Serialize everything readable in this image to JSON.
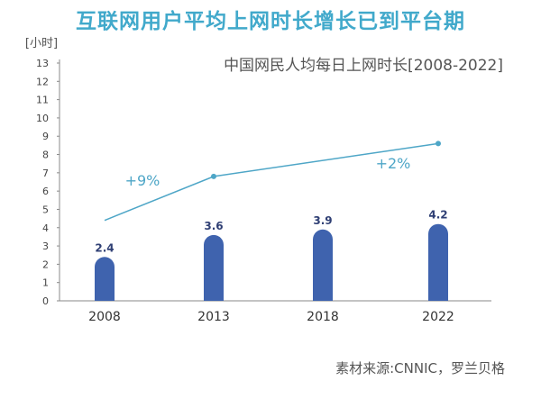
{
  "chart_data": {
    "type": "bar",
    "title": "互联网用户平均上网时长增长已到平台期",
    "subtitle": "中国网民人均每日上网时长[2008-2022]",
    "ylabel": "[小时]",
    "ylim": [
      0,
      13
    ],
    "yticks": [
      0,
      1,
      2,
      3,
      4,
      5,
      6,
      7,
      8,
      9,
      10,
      11,
      12,
      13
    ],
    "categories": [
      "2008",
      "2013",
      "2018",
      "2022"
    ],
    "series": [
      {
        "type": "bar",
        "values": [
          2.4,
          3.6,
          3.9,
          4.2
        ]
      },
      {
        "type": "line",
        "values": [
          4.4,
          6.8,
          null,
          8.6
        ]
      }
    ],
    "annotations": [
      "+9%",
      "+2%"
    ],
    "grid": false,
    "source": "素材来源:CNNIC，罗兰贝格",
    "colors": {
      "title": "#41a9cb",
      "bar": "#3f63ae",
      "line": "#4ea6c7",
      "axis": "#8a8a8a",
      "label": "#2f3f74"
    }
  }
}
